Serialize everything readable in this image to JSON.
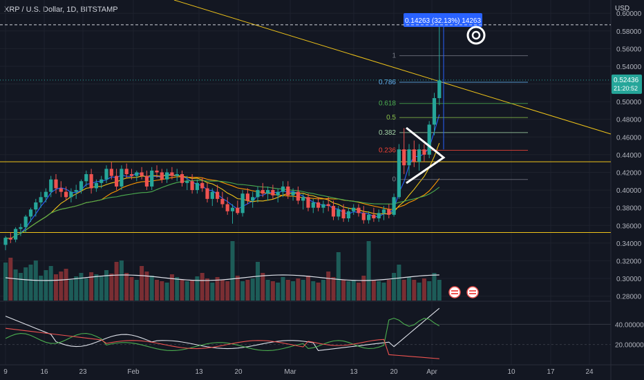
{
  "header": {
    "title": "XRP / U.S. Dollar, 1D, BITSTAMP"
  },
  "y_axis": {
    "title": "USD",
    "ticks": [
      "0.60000",
      "0.58000",
      "0.56000",
      "0.54000",
      "0.52000",
      "0.50000",
      "0.48000",
      "0.46000",
      "0.44000",
      "0.42000",
      "0.40000",
      "0.38000",
      "0.36000",
      "0.34000",
      "0.32000",
      "0.30000",
      "0.28000"
    ],
    "tick_values": [
      0.6,
      0.58,
      0.56,
      0.54,
      0.52,
      0.5,
      0.48,
      0.46,
      0.44,
      0.42,
      0.4,
      0.38,
      0.36,
      0.34,
      0.32,
      0.3,
      0.28
    ]
  },
  "price_label": {
    "value": "0.52436",
    "countdown": "21:20:52",
    "color": "#26a69a"
  },
  "measure_label": {
    "text": "0.14263 (32.13%) 14263",
    "color": "#2962ff"
  },
  "oscillator": {
    "ticks": [
      "40.00000",
      "20.00000"
    ]
  },
  "x_axis": {
    "labels": [
      "9",
      "16",
      "23",
      "Feb",
      "13",
      "20",
      "Mar",
      "13",
      "20",
      "Apr",
      "10",
      "17",
      "24"
    ]
  },
  "fib_labels": [
    {
      "text": "1",
      "color": "#787b86"
    },
    {
      "text": "0.786",
      "color": "#64b5f6"
    },
    {
      "text": "0.618",
      "color": "#4caf50"
    },
    {
      "text": "0.5",
      "color": "#8bc34a"
    },
    {
      "text": "0.382",
      "color": "#a5d6a7"
    },
    {
      "text": "0.236",
      "color": "#f44336"
    },
    {
      "text": "0",
      "color": "#787b86"
    }
  ],
  "colors": {
    "up": "#26a69a",
    "down": "#ef5350",
    "bg": "#131722",
    "grid": "#1e222d",
    "yellow": "#f0c419",
    "orange": "#ff9800"
  },
  "chart_data": {
    "type": "candlestick",
    "title": "XRP / U.S. Dollar, 1D, BITSTAMP",
    "ylim": [
      0.275,
      0.615
    ],
    "candles": [
      [
        0.338,
        0.348,
        0.332,
        0.346
      ],
      [
        0.346,
        0.352,
        0.34,
        0.344
      ],
      [
        0.344,
        0.358,
        0.341,
        0.356
      ],
      [
        0.356,
        0.362,
        0.348,
        0.358
      ],
      [
        0.358,
        0.372,
        0.352,
        0.37
      ],
      [
        0.37,
        0.38,
        0.364,
        0.378
      ],
      [
        0.378,
        0.39,
        0.37,
        0.386
      ],
      [
        0.386,
        0.398,
        0.38,
        0.392
      ],
      [
        0.392,
        0.402,
        0.386,
        0.398
      ],
      [
        0.398,
        0.416,
        0.392,
        0.412
      ],
      [
        0.412,
        0.418,
        0.396,
        0.402
      ],
      [
        0.402,
        0.41,
        0.392,
        0.398
      ],
      [
        0.398,
        0.404,
        0.388,
        0.392
      ],
      [
        0.392,
        0.402,
        0.386,
        0.398
      ],
      [
        0.398,
        0.406,
        0.39,
        0.4
      ],
      [
        0.4,
        0.412,
        0.396,
        0.41
      ],
      [
        0.41,
        0.422,
        0.404,
        0.418
      ],
      [
        0.418,
        0.424,
        0.396,
        0.402
      ],
      [
        0.402,
        0.412,
        0.398,
        0.408
      ],
      [
        0.408,
        0.416,
        0.402,
        0.412
      ],
      [
        0.412,
        0.428,
        0.408,
        0.424
      ],
      [
        0.424,
        0.432,
        0.412,
        0.416
      ],
      [
        0.416,
        0.424,
        0.4,
        0.404
      ],
      [
        0.404,
        0.428,
        0.4,
        0.424
      ],
      [
        0.424,
        0.43,
        0.414,
        0.418
      ],
      [
        0.418,
        0.424,
        0.412,
        0.416
      ],
      [
        0.416,
        0.422,
        0.41,
        0.42
      ],
      [
        0.42,
        0.426,
        0.412,
        0.416
      ],
      [
        0.416,
        0.422,
        0.4,
        0.404
      ],
      [
        0.404,
        0.426,
        0.4,
        0.422
      ],
      [
        0.422,
        0.428,
        0.414,
        0.42
      ],
      [
        0.42,
        0.424,
        0.408,
        0.412
      ],
      [
        0.412,
        0.424,
        0.408,
        0.42
      ],
      [
        0.42,
        0.426,
        0.412,
        0.416
      ],
      [
        0.416,
        0.424,
        0.41,
        0.418
      ],
      [
        0.418,
        0.422,
        0.404,
        0.408
      ],
      [
        0.408,
        0.416,
        0.4,
        0.41
      ],
      [
        0.41,
        0.418,
        0.396,
        0.4
      ],
      [
        0.4,
        0.412,
        0.396,
        0.408
      ],
      [
        0.408,
        0.414,
        0.398,
        0.402
      ],
      [
        0.402,
        0.408,
        0.386,
        0.39
      ],
      [
        0.39,
        0.402,
        0.382,
        0.398
      ],
      [
        0.398,
        0.406,
        0.386,
        0.39
      ],
      [
        0.39,
        0.398,
        0.38,
        0.384
      ],
      [
        0.384,
        0.392,
        0.372,
        0.376
      ],
      [
        0.376,
        0.384,
        0.362,
        0.38
      ],
      [
        0.38,
        0.388,
        0.372,
        0.374
      ],
      [
        0.374,
        0.4,
        0.37,
        0.396
      ],
      [
        0.396,
        0.402,
        0.384,
        0.388
      ],
      [
        0.388,
        0.398,
        0.38,
        0.392
      ],
      [
        0.392,
        0.404,
        0.386,
        0.4
      ],
      [
        0.4,
        0.408,
        0.392,
        0.396
      ],
      [
        0.396,
        0.404,
        0.388,
        0.4
      ],
      [
        0.4,
        0.406,
        0.39,
        0.394
      ],
      [
        0.394,
        0.402,
        0.386,
        0.398
      ],
      [
        0.398,
        0.41,
        0.392,
        0.404
      ],
      [
        0.404,
        0.41,
        0.39,
        0.394
      ],
      [
        0.394,
        0.402,
        0.388,
        0.398
      ],
      [
        0.398,
        0.404,
        0.384,
        0.388
      ],
      [
        0.388,
        0.396,
        0.378,
        0.392
      ],
      [
        0.392,
        0.396,
        0.376,
        0.38
      ],
      [
        0.38,
        0.39,
        0.374,
        0.386
      ],
      [
        0.386,
        0.392,
        0.376,
        0.38
      ],
      [
        0.38,
        0.388,
        0.374,
        0.384
      ],
      [
        0.384,
        0.392,
        0.376,
        0.382
      ],
      [
        0.382,
        0.388,
        0.366,
        0.37
      ],
      [
        0.37,
        0.382,
        0.366,
        0.378
      ],
      [
        0.378,
        0.384,
        0.364,
        0.368
      ],
      [
        0.368,
        0.38,
        0.364,
        0.376
      ],
      [
        0.376,
        0.384,
        0.372,
        0.38
      ],
      [
        0.38,
        0.384,
        0.37,
        0.374
      ],
      [
        0.374,
        0.382,
        0.362,
        0.366
      ],
      [
        0.366,
        0.376,
        0.362,
        0.372
      ],
      [
        0.372,
        0.38,
        0.364,
        0.368
      ],
      [
        0.368,
        0.378,
        0.364,
        0.374
      ],
      [
        0.374,
        0.382,
        0.366,
        0.378
      ],
      [
        0.378,
        0.384,
        0.368,
        0.372
      ],
      [
        0.372,
        0.396,
        0.37,
        0.392
      ],
      [
        0.392,
        0.452,
        0.39,
        0.446
      ],
      [
        0.446,
        0.47,
        0.418,
        0.428
      ],
      [
        0.428,
        0.452,
        0.416,
        0.446
      ],
      [
        0.446,
        0.456,
        0.426,
        0.432
      ],
      [
        0.432,
        0.452,
        0.422,
        0.446
      ],
      [
        0.446,
        0.452,
        0.432,
        0.44
      ],
      [
        0.44,
        0.478,
        0.436,
        0.474
      ],
      [
        0.474,
        0.51,
        0.462,
        0.504
      ],
      [
        0.504,
        0.586,
        0.496,
        0.524
      ]
    ],
    "volume": [
      0.55,
      0.62,
      0.45,
      0.4,
      0.48,
      0.52,
      0.58,
      0.36,
      0.44,
      0.5,
      0.38,
      0.42,
      0.46,
      0.3,
      0.35,
      0.4,
      0.32,
      0.41,
      0.38,
      0.36,
      0.44,
      0.39,
      0.56,
      0.58,
      0.4,
      0.34,
      0.3,
      0.5,
      0.42,
      0.36,
      0.3,
      0.28,
      0.26,
      0.38,
      0.34,
      0.3,
      0.28,
      0.3,
      0.35,
      0.4,
      0.32,
      0.26,
      0.34,
      0.3,
      0.28,
      0.86,
      0.36,
      0.28,
      0.3,
      0.32,
      0.56,
      0.4,
      0.3,
      0.28,
      0.26,
      0.34,
      0.3,
      0.28,
      0.32,
      0.3,
      0.36,
      0.28,
      0.26,
      0.3,
      0.42,
      0.34,
      0.7,
      0.3,
      0.28,
      0.3,
      0.26,
      0.36,
      0.86,
      0.3,
      0.28,
      0.26,
      0.3,
      0.4,
      0.52,
      0.3,
      0.34,
      0.3,
      0.26,
      0.32,
      0.28,
      0.4,
      0.3
    ]
  }
}
